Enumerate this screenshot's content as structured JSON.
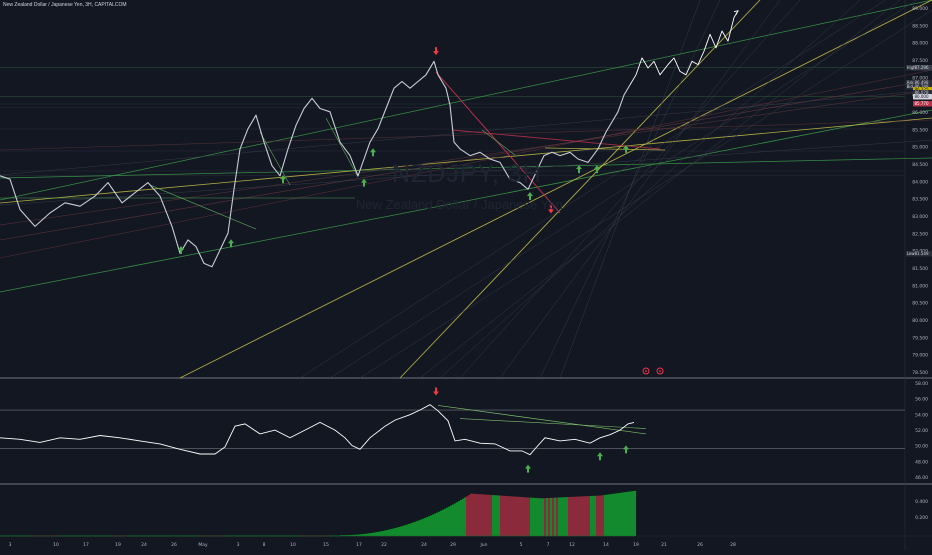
{
  "header": {
    "title": "New Zealand Dollar / Japanese Yen, 3H, CAPITALCOM"
  },
  "watermark": {
    "symbol": "NZDJPY, 3H",
    "name": "New Zealand Dollar / Japanese Yen"
  },
  "colors": {
    "background": "#131722",
    "price": "#d1d4dc",
    "green_arrow": "#4caf50",
    "red_arrow": "#f23645",
    "yellow_line": "#c9c54b",
    "green_line": "#3fa34d",
    "red_line": "#b8324a",
    "hist_green": "#138a2e",
    "hist_red": "#8a2a3a"
  },
  "chart_data": [
    {
      "type": "line",
      "panel": "price",
      "x_labels": [
        "3",
        "10",
        "17",
        "19",
        "24",
        "26",
        "May",
        "3",
        "8",
        "10",
        "15",
        "17",
        "22",
        "24",
        "29",
        "Jun",
        "5",
        "7",
        "12",
        "14",
        "19",
        "21",
        "26",
        "28"
      ],
      "y_labels": [
        "89.000",
        "88.500",
        "88.000",
        "87.500",
        "87.000",
        "86.500",
        "86.000",
        "85.500",
        "85.000",
        "84.500",
        "84.000",
        "83.500",
        "83.000",
        "82.500",
        "82.000",
        "81.500",
        "81.000",
        "80.500",
        "80.000",
        "79.500",
        "79.000",
        "78.500"
      ],
      "ylim": [
        78.2,
        89.3
      ],
      "series": [
        {
          "points": [
            [
              0,
              84.2
            ],
            [
              10,
              84.1
            ],
            [
              20,
              83.2
            ],
            [
              35,
              82.7
            ],
            [
              50,
              83.1
            ],
            [
              65,
              83.4
            ],
            [
              80,
              83.3
            ],
            [
              95,
              83.6
            ],
            [
              108,
              84.0
            ],
            [
              122,
              83.4
            ],
            [
              135,
              83.7
            ],
            [
              148,
              84.0
            ],
            [
              160,
              83.6
            ],
            [
              172,
              82.7
            ],
            [
              180,
              81.9
            ],
            [
              188,
              82.3
            ],
            [
              196,
              82.1
            ],
            [
              204,
              81.6
            ],
            [
              212,
              81.5
            ],
            [
              220,
              82.0
            ],
            [
              228,
              82.5
            ],
            [
              234,
              83.8
            ],
            [
              240,
              85.0
            ],
            [
              248,
              85.6
            ],
            [
              256,
              86.0
            ],
            [
              264,
              85.2
            ],
            [
              272,
              84.5
            ],
            [
              280,
              84.2
            ],
            [
              288,
              85.0
            ],
            [
              296,
              85.7
            ],
            [
              304,
              86.2
            ],
            [
              312,
              86.5
            ],
            [
              320,
              86.2
            ],
            [
              330,
              86.1
            ],
            [
              340,
              85.2
            ],
            [
              350,
              84.8
            ],
            [
              358,
              84.2
            ],
            [
              364,
              84.7
            ],
            [
              370,
              85.2
            ],
            [
              378,
              85.6
            ],
            [
              386,
              86.2
            ],
            [
              394,
              86.8
            ],
            [
              402,
              87.0
            ],
            [
              410,
              86.8
            ],
            [
              418,
              87.0
            ],
            [
              426,
              87.2
            ],
            [
              434,
              87.6
            ],
            [
              438,
              87.2
            ],
            [
              442,
              87.0
            ],
            [
              446,
              86.8
            ],
            [
              450,
              86.3
            ],
            [
              454,
              85.2
            ],
            [
              460,
              85.0
            ],
            [
              470,
              84.8
            ],
            [
              480,
              84.9
            ],
            [
              490,
              84.7
            ],
            [
              500,
              84.6
            ],
            [
              510,
              84.1
            ],
            [
              520,
              84.0
            ],
            [
              528,
              83.8
            ],
            [
              536,
              84.3
            ],
            [
              544,
              84.8
            ],
            [
              552,
              84.9
            ],
            [
              560,
              84.8
            ],
            [
              570,
              84.9
            ],
            [
              578,
              84.7
            ],
            [
              588,
              84.6
            ],
            [
              598,
              85.0
            ],
            [
              606,
              85.5
            ],
            [
              612,
              85.8
            ],
            [
              618,
              86.1
            ],
            [
              624,
              86.6
            ],
            [
              630,
              86.9
            ]
          ]
        },
        {
          "name": "projection",
          "points": [
            [
              630,
              86.9
            ],
            [
              636,
              87.2
            ],
            [
              642,
              87.7
            ],
            [
              648,
              87.4
            ],
            [
              654,
              87.6
            ],
            [
              660,
              87.2
            ],
            [
              668,
              87.5
            ],
            [
              674,
              87.7
            ],
            [
              680,
              87.3
            ],
            [
              686,
              87.2
            ],
            [
              692,
              87.6
            ],
            [
              698,
              87.5
            ],
            [
              704,
              87.9
            ],
            [
              710,
              88.4
            ],
            [
              716,
              88.0
            ],
            [
              722,
              88.5
            ],
            [
              728,
              88.2
            ],
            [
              734,
              88.9
            ],
            [
              738,
              89.1
            ]
          ]
        }
      ],
      "markers": [
        {
          "type": "up",
          "color": "green",
          "points": [
            [
              181,
              82.0
            ],
            [
              231,
              82.2
            ],
            [
              283,
              84.1
            ],
            [
              364,
              84.0
            ],
            [
              373,
              84.9
            ],
            [
              530,
              83.6
            ],
            [
              579,
              84.4
            ],
            [
              597,
              84.4
            ],
            [
              626,
              85.0
            ]
          ]
        },
        {
          "type": "down",
          "color": "red",
          "points": [
            [
              436,
              87.9
            ],
            [
              551,
              83.2
            ]
          ]
        }
      ],
      "price_labels": [
        "87.296",
        "86.498",
        "86.288",
        "86.225",
        "86.078",
        "86.000",
        "85.770",
        "81.549"
      ],
      "price_label_names": [
        "High",
        "Ask",
        "Bid",
        "",
        "",
        "",
        "",
        "Low"
      ]
    },
    {
      "type": "line",
      "panel": "rsi",
      "y_labels": [
        "58.00",
        "56.00",
        "54.00",
        "52.00",
        "50.00",
        "48.00",
        "46.00"
      ],
      "ylim": [
        45.0,
        58.5
      ],
      "levels": [
        54.6,
        49.6
      ],
      "points": [
        [
          0,
          51.0
        ],
        [
          20,
          50.8
        ],
        [
          40,
          50.4
        ],
        [
          60,
          51.0
        ],
        [
          80,
          50.8
        ],
        [
          100,
          51.3
        ],
        [
          120,
          51.0
        ],
        [
          140,
          50.6
        ],
        [
          160,
          50.2
        ],
        [
          180,
          49.5
        ],
        [
          200,
          48.9
        ],
        [
          215,
          48.9
        ],
        [
          225,
          49.8
        ],
        [
          235,
          52.5
        ],
        [
          245,
          52.8
        ],
        [
          260,
          51.5
        ],
        [
          275,
          52.0
        ],
        [
          290,
          51.0
        ],
        [
          305,
          52.0
        ],
        [
          320,
          53.0
        ],
        [
          335,
          52.0
        ],
        [
          345,
          51.0
        ],
        [
          352,
          50.0
        ],
        [
          360,
          49.5
        ],
        [
          370,
          51.0
        ],
        [
          385,
          52.5
        ],
        [
          395,
          53.3
        ],
        [
          410,
          54.0
        ],
        [
          420,
          54.6
        ],
        [
          430,
          55.3
        ],
        [
          438,
          54.5
        ],
        [
          448,
          53.2
        ],
        [
          455,
          50.6
        ],
        [
          465,
          50.8
        ],
        [
          480,
          50.3
        ],
        [
          495,
          50.2
        ],
        [
          510,
          49.3
        ],
        [
          522,
          49.3
        ],
        [
          530,
          48.8
        ],
        [
          538,
          50.0
        ],
        [
          545,
          51.0
        ],
        [
          560,
          50.6
        ],
        [
          575,
          50.8
        ],
        [
          590,
          50.3
        ],
        [
          600,
          51.0
        ],
        [
          610,
          51.4
        ],
        [
          620,
          52.0
        ],
        [
          628,
          52.8
        ],
        [
          634,
          53.0
        ]
      ],
      "markers": [
        {
          "type": "down",
          "color": "red",
          "points": [
            [
              436,
              57.0
            ]
          ]
        },
        {
          "type": "up",
          "color": "green",
          "points": [
            [
              528,
              47.0
            ],
            [
              600,
              48.6
            ],
            [
              626,
              49.5
            ]
          ]
        }
      ]
    },
    {
      "type": "bar",
      "panel": "histogram",
      "y_labels": [
        "0.400",
        "0.200"
      ],
      "ylim": [
        0,
        0.52
      ]
    }
  ]
}
